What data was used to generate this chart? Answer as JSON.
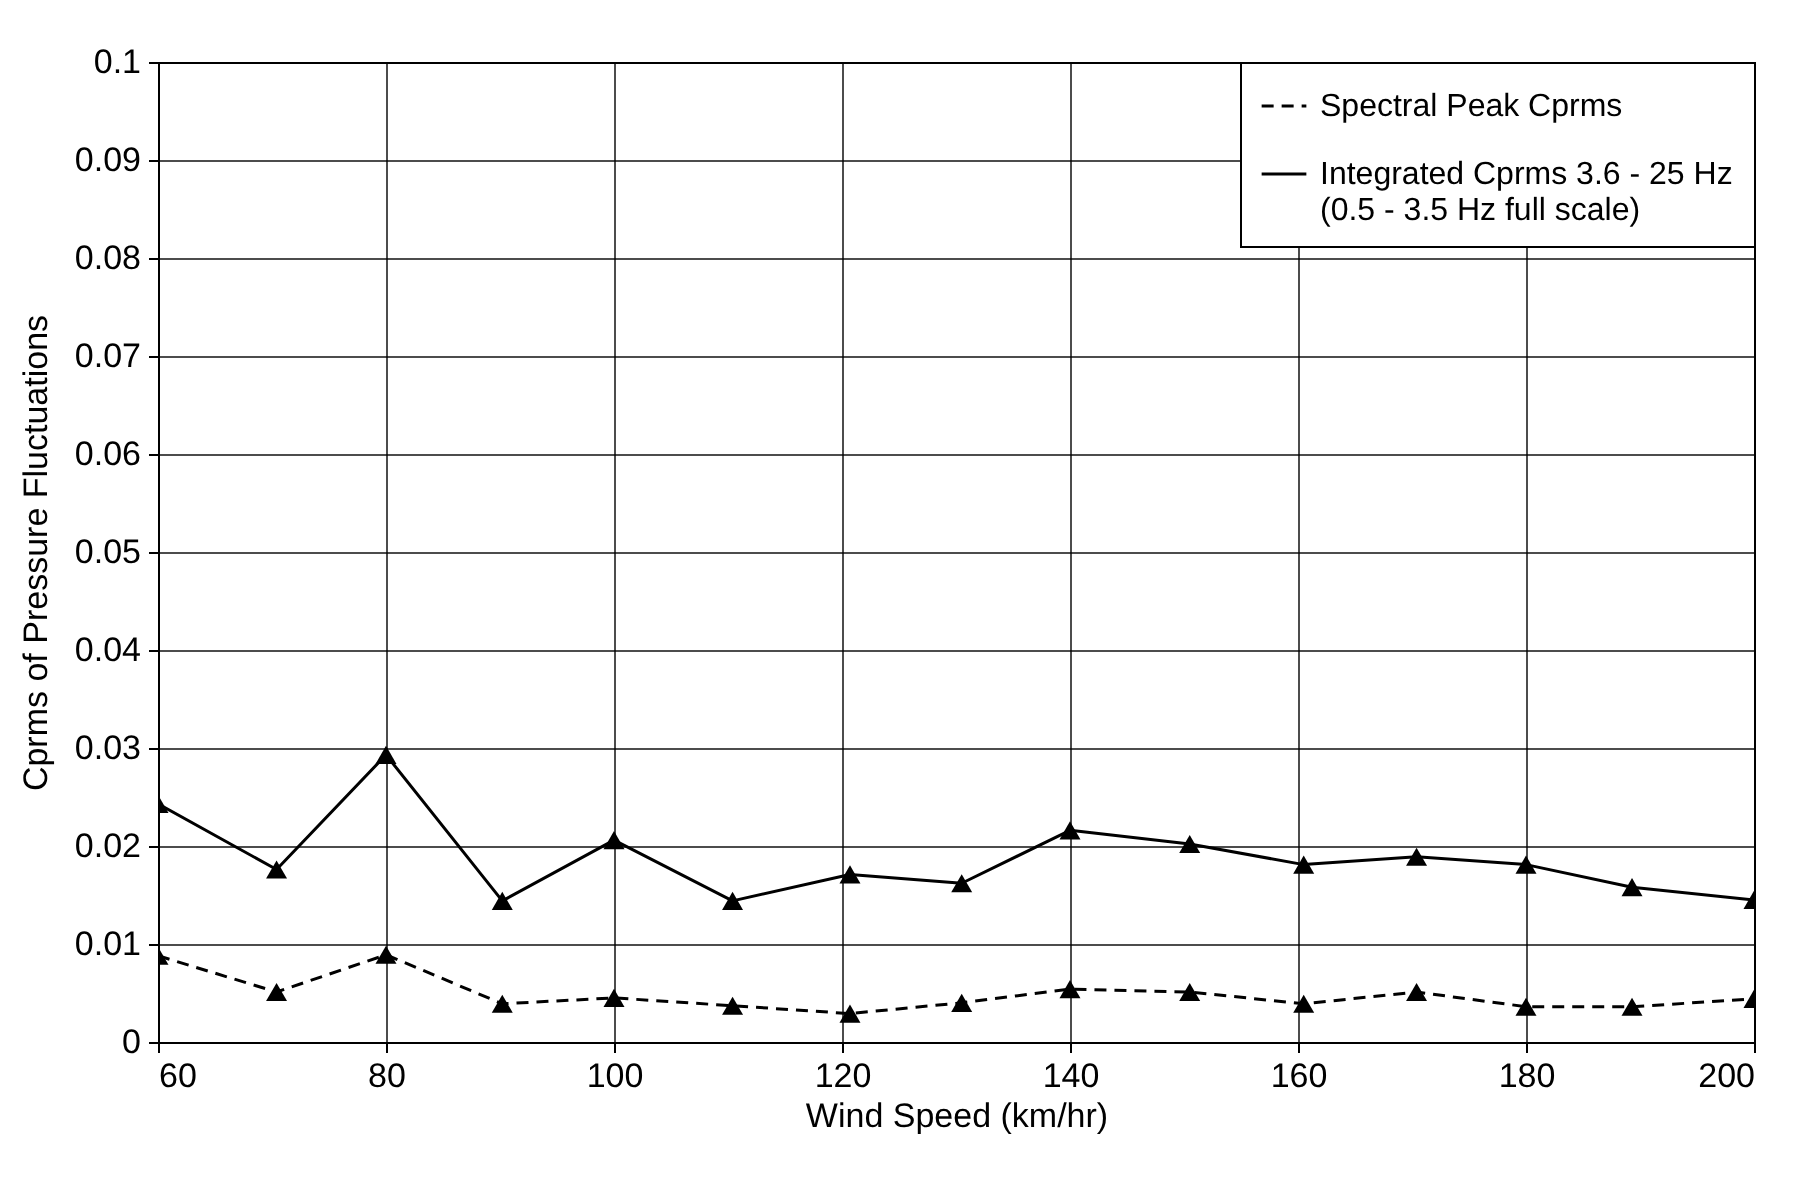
{
  "chart_data": {
    "type": "line",
    "xlabel": "Wind Speed (km/hr)",
    "ylabel": "Cprms of Pressure Fluctuations",
    "xlim": [
      60,
      200
    ],
    "xticks": [
      60,
      80,
      100,
      120,
      140,
      160,
      180,
      200
    ],
    "ylim": [
      0,
      0.1
    ],
    "yticks": [
      0,
      0.01,
      0.02,
      0.03,
      0.04,
      0.05,
      0.06,
      0.07,
      0.08,
      0.09,
      0.1
    ],
    "grid": true,
    "legend": "top right",
    "marker": "triangle",
    "series": [
      {
        "name": "Spectral Peak Cprms",
        "color": "#000000",
        "line_style": "dashed",
        "x": [
          60,
          70.4,
          80,
          90.2,
          100,
          110.4,
          120.7,
          130.5,
          140,
          150.5,
          160.5,
          170.4,
          180,
          189.3,
          200
        ],
        "values": [
          0.0088,
          0.0051,
          0.0089,
          0.0039,
          0.0045,
          0.0037,
          0.0029,
          0.004,
          0.0054,
          0.0051,
          0.0039,
          0.0051,
          0.0036,
          0.0036,
          0.0044
        ]
      },
      {
        "name": "Integrated Cprms 3.6 - 25 Hz\n(0.5 - 3.5 Hz full scale)",
        "color": "#000000",
        "line_style": "solid",
        "x": [
          60,
          70.4,
          80,
          90.2,
          100,
          110.4,
          120.7,
          130.5,
          140,
          150.5,
          160.5,
          170.4,
          180,
          189.3,
          200
        ],
        "values": [
          0.0243,
          0.0176,
          0.0293,
          0.0144,
          0.0206,
          0.0144,
          0.0171,
          0.0162,
          0.0216,
          0.0202,
          0.0181,
          0.0189,
          0.0181,
          0.0158,
          0.0145
        ]
      }
    ]
  }
}
